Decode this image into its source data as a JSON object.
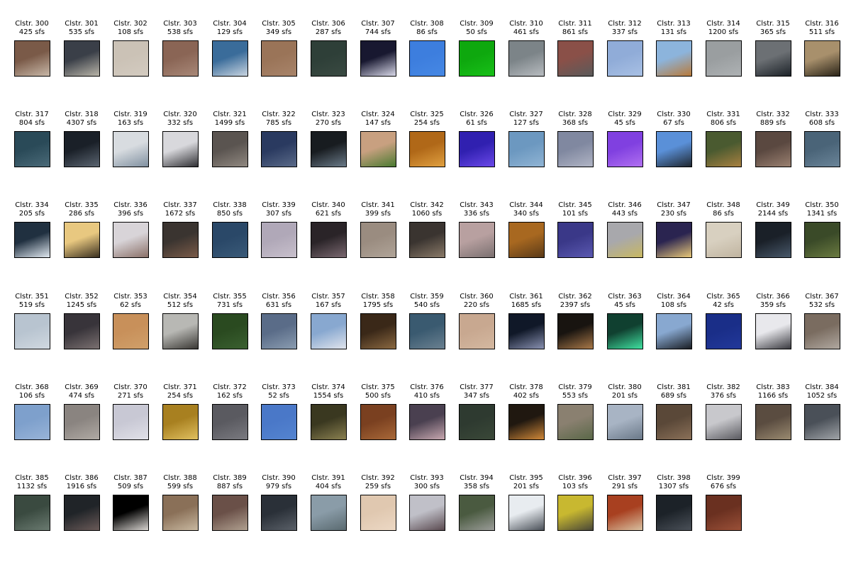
{
  "clusters": [
    {
      "label": "Clstr. 300",
      "count": "425 sfs",
      "img": "brown-roof-building",
      "c1": "#7a5a48",
      "c2": "#c8b8a8"
    },
    {
      "label": "Clstr. 301",
      "count": "535 sfs",
      "img": "city-buildings",
      "c1": "#3a3f48",
      "c2": "#b8b4a8"
    },
    {
      "label": "Clstr. 302",
      "count": "108 sfs",
      "img": "beige-wall",
      "c1": "#cbc2b6",
      "c2": "#d3cbc0"
    },
    {
      "label": "Clstr. 303",
      "count": "538 sfs",
      "img": "brown-roof",
      "c1": "#8a6555",
      "c2": "#a88878"
    },
    {
      "label": "Clstr. 304",
      "count": "129 sfs",
      "img": "mountains-skyline",
      "c1": "#3a6c9a",
      "c2": "#c8d4e0"
    },
    {
      "label": "Clstr. 305",
      "count": "349 sfs",
      "img": "brown-texture",
      "c1": "#9a7458",
      "c2": "#a8846a"
    },
    {
      "label": "Clstr. 306",
      "count": "287 sfs",
      "img": "dark-green-surface",
      "c1": "#2e3f38",
      "c2": "#3a4a42"
    },
    {
      "label": "Clstr. 307",
      "count": "744 sfs",
      "img": "night-lit-windows",
      "c1": "#181830",
      "c2": "#d8d8e8"
    },
    {
      "label": "Clstr. 308",
      "count": "86 sfs",
      "img": "blue-sky",
      "c1": "#3d7ede",
      "c2": "#4688e4"
    },
    {
      "label": "Clstr. 309",
      "count": "50 sfs",
      "img": "green-screen",
      "c1": "#0ea80e",
      "c2": "#18c018"
    },
    {
      "label": "Clstr. 310",
      "count": "461 sfs",
      "img": "grey-rooftop",
      "c1": "#7c8488",
      "c2": "#b8bcc0"
    },
    {
      "label": "Clstr. 311",
      "count": "861 sfs",
      "img": "red-grey-roof",
      "c1": "#8a5048",
      "c2": "#5a5a5a"
    },
    {
      "label": "Clstr. 312",
      "count": "337 sfs",
      "img": "light-blue-sky",
      "c1": "#90acd8",
      "c2": "#a8c0e4"
    },
    {
      "label": "Clstr. 313",
      "count": "131 sfs",
      "img": "autumn-trees-sky",
      "c1": "#8cb4dc",
      "c2": "#b87a3a"
    },
    {
      "label": "Clstr. 314",
      "count": "1200 sfs",
      "img": "grey-pavement",
      "c1": "#9a9ea0",
      "c2": "#aeb2b4"
    },
    {
      "label": "Clstr. 315",
      "count": "365 sfs",
      "img": "grey-wall-dark-base",
      "c1": "#6c7074",
      "c2": "#1c2228"
    },
    {
      "label": "Clstr. 316",
      "count": "511 sfs",
      "img": "tan-building-windows",
      "c1": "#a8906c",
      "c2": "#2a2418"
    },
    {
      "label": "Clstr. 317",
      "count": "804 sfs",
      "img": "water-bridge",
      "c1": "#2a4a58",
      "c2": "#4a6a78"
    },
    {
      "label": "Clstr. 318",
      "count": "4307 sfs",
      "img": "dark-glass-facade",
      "c1": "#1a2028",
      "c2": "#5a6470"
    },
    {
      "label": "Clstr. 319",
      "count": "163 sfs",
      "img": "white-building-windows",
      "c1": "#d8dce0",
      "c2": "#8090a0"
    },
    {
      "label": "Clstr. 320",
      "count": "332 sfs",
      "img": "white-diagonal-roof",
      "c1": "#d8d8dc",
      "c2": "#303034"
    },
    {
      "label": "Clstr. 321",
      "count": "1499 sfs",
      "img": "grey-layered-roof",
      "c1": "#5a5450",
      "c2": "#908880"
    },
    {
      "label": "Clstr. 322",
      "count": "785 sfs",
      "img": "blue-glass-tower",
      "c1": "#2a3a60",
      "c2": "#5a6a88"
    },
    {
      "label": "Clstr. 323",
      "count": "270 sfs",
      "img": "water-dark-top",
      "c1": "#181c20",
      "c2": "#6a7a88"
    },
    {
      "label": "Clstr. 324",
      "count": "147 sfs",
      "img": "tan-field",
      "c1": "#c8a080",
      "c2": "#4a7a30"
    },
    {
      "label": "Clstr. 325",
      "count": "254 sfs",
      "img": "orange-lights",
      "c1": "#b06818",
      "c2": "#e0a040"
    },
    {
      "label": "Clstr. 326",
      "count": "61 sfs",
      "img": "purple-neon",
      "c1": "#3020b0",
      "c2": "#6a48e8"
    },
    {
      "label": "Clstr. 327",
      "count": "127 sfs",
      "img": "pale-blue-glass",
      "c1": "#6c98c0",
      "c2": "#90b4d4"
    },
    {
      "label": "Clstr. 328",
      "count": "368 sfs",
      "img": "grey-tower",
      "c1": "#8088a0",
      "c2": "#b0b4c4"
    },
    {
      "label": "Clstr. 329",
      "count": "45 sfs",
      "img": "violet-gradient",
      "c1": "#8040e0",
      "c2": "#b070f0"
    },
    {
      "label": "Clstr. 330",
      "count": "67 sfs",
      "img": "building-on-sky",
      "c1": "#5a90d8",
      "c2": "#202830"
    },
    {
      "label": "Clstr. 331",
      "count": "806 sfs",
      "img": "autumn-foliage",
      "c1": "#4a5a30",
      "c2": "#a88040"
    },
    {
      "label": "Clstr. 332",
      "count": "889 sfs",
      "img": "brown-diagonal",
      "c1": "#5a4840",
      "c2": "#9a8070"
    },
    {
      "label": "Clstr. 333",
      "count": "608 sfs",
      "img": "steel-blue-water",
      "c1": "#4a6478",
      "c2": "#6a8498"
    },
    {
      "label": "Clstr. 334",
      "count": "205 sfs",
      "img": "white-stripes-diagonal",
      "c1": "#203040",
      "c2": "#e0e8f0"
    },
    {
      "label": "Clstr. 335",
      "count": "286 sfs",
      "img": "yellow-lit-building",
      "c1": "#e8c880",
      "c2": "#3a3020"
    },
    {
      "label": "Clstr. 336",
      "count": "396 sfs",
      "img": "bare-branches",
      "c1": "#d8d4d8",
      "c2": "#8a7068"
    },
    {
      "label": "Clstr. 337",
      "count": "1672 sfs",
      "img": "dark-rooftop-street",
      "c1": "#3a3430",
      "c2": "#7a5a48"
    },
    {
      "label": "Clstr. 338",
      "count": "850 sfs",
      "img": "deep-blue-water",
      "c1": "#2a4868",
      "c2": "#3a5a78"
    },
    {
      "label": "Clstr. 339",
      "count": "307 sfs",
      "img": "hazy-lilac-sky",
      "c1": "#b0a8b8",
      "c2": "#c8c0cc"
    },
    {
      "label": "Clstr. 340",
      "count": "621 sfs",
      "img": "dark-tower-windows",
      "c1": "#2a2428",
      "c2": "#7a6870"
    },
    {
      "label": "Clstr. 341",
      "count": "399 sfs",
      "img": "stone-texture",
      "c1": "#9a8c80",
      "c2": "#b0a498"
    },
    {
      "label": "Clstr. 342",
      "count": "1060 sfs",
      "img": "dark-diagonal-road",
      "c1": "#3a3430",
      "c2": "#8a7a68"
    },
    {
      "label": "Clstr. 343",
      "count": "336 sfs",
      "img": "pink-grey-roof",
      "c1": "#b8a0a0",
      "c2": "#7a7070"
    },
    {
      "label": "Clstr. 344",
      "count": "340 sfs",
      "img": "orange-tree",
      "c1": "#a86820",
      "c2": "#5a3a18"
    },
    {
      "label": "Clstr. 345",
      "count": "101 sfs",
      "img": "indigo-surface",
      "c1": "#3a3888",
      "c2": "#5a58b0"
    },
    {
      "label": "Clstr. 346",
      "count": "443 sfs",
      "img": "grey-road-yellow-line",
      "c1": "#a8a8ac",
      "c2": "#c8b860"
    },
    {
      "label": "Clstr. 347",
      "count": "230 sfs",
      "img": "purple-night-building",
      "c1": "#2a2450",
      "c2": "#e8c878"
    },
    {
      "label": "Clstr. 348",
      "count": "86 sfs",
      "img": "sand-beach",
      "c1": "#d8d0c0",
      "c2": "#c0b4a0"
    },
    {
      "label": "Clstr. 349",
      "count": "2144 sfs",
      "img": "dark-facade",
      "c1": "#1a2028",
      "c2": "#48586a"
    },
    {
      "label": "Clstr. 350",
      "count": "1341 sfs",
      "img": "green-tree",
      "c1": "#3a4a28",
      "c2": "#6a7a40"
    },
    {
      "label": "Clstr. 351",
      "count": "519 sfs",
      "img": "pale-sky",
      "c1": "#b8c4d0",
      "c2": "#d0d8e0"
    },
    {
      "label": "Clstr. 352",
      "count": "1245 sfs",
      "img": "dark-roof-corner",
      "c1": "#38343a",
      "c2": "#7a7070"
    },
    {
      "label": "Clstr. 353",
      "count": "62 sfs",
      "img": "tan-wood",
      "c1": "#c8905a",
      "c2": "#d0a06a"
    },
    {
      "label": "Clstr. 354",
      "count": "512 sfs",
      "img": "parking-structure",
      "c1": "#b8b8b4",
      "c2": "#3a3834"
    },
    {
      "label": "Clstr. 355",
      "count": "731 sfs",
      "img": "green-leaves",
      "c1": "#2a4a20",
      "c2": "#3a6030"
    },
    {
      "label": "Clstr. 356",
      "count": "631 sfs",
      "img": "glass-curtain-wall",
      "c1": "#5a6c88",
      "c2": "#8a9cb0"
    },
    {
      "label": "Clstr. 357",
      "count": "167 sfs",
      "img": "cloudy-sky",
      "c1": "#88a8d0",
      "c2": "#e0e4ec"
    },
    {
      "label": "Clstr. 358",
      "count": "1795 sfs",
      "img": "brown-foliage",
      "c1": "#3a2818",
      "c2": "#8a6840"
    },
    {
      "label": "Clstr. 359",
      "count": "540 sfs",
      "img": "river-shore",
      "c1": "#3a5a70",
      "c2": "#6a8090"
    },
    {
      "label": "Clstr. 360",
      "count": "220 sfs",
      "img": "peach-surface",
      "c1": "#c8a890",
      "c2": "#d4b8a0"
    },
    {
      "label": "Clstr. 361",
      "count": "1685 sfs",
      "img": "night-office-tower",
      "c1": "#101828",
      "c2": "#8890b0"
    },
    {
      "label": "Clstr. 362",
      "count": "2397 sfs",
      "img": "dark-street-lights",
      "c1": "#181410",
      "c2": "#a87848"
    },
    {
      "label": "Clstr. 363",
      "count": "45 sfs",
      "img": "green-led-sign",
      "c1": "#104030",
      "c2": "#40e0a0"
    },
    {
      "label": "Clstr. 364",
      "count": "108 sfs",
      "img": "sky-dark-building",
      "c1": "#88a8d0",
      "c2": "#1a1e24"
    },
    {
      "label": "Clstr. 365",
      "count": "42 sfs",
      "img": "navy-blue",
      "c1": "#1a2e88",
      "c2": "#22389a"
    },
    {
      "label": "Clstr. 366",
      "count": "359 sfs",
      "img": "white-house",
      "c1": "#e8e8ec",
      "c2": "#3a3a40"
    },
    {
      "label": "Clstr. 367",
      "count": "532 sfs",
      "img": "grey-brown-wall",
      "c1": "#7a6c60",
      "c2": "#b0a8a0"
    },
    {
      "label": "Clstr. 368",
      "count": "106 sfs",
      "img": "blue-sky-haze",
      "c1": "#7ea0cc",
      "c2": "#98b4d8"
    },
    {
      "label": "Clstr. 369",
      "count": "474 sfs",
      "img": "grey-diagonal-road",
      "c1": "#8a8480",
      "c2": "#b0aaa4"
    },
    {
      "label": "Clstr. 370",
      "count": "271 sfs",
      "img": "overcast-sky",
      "c1": "#c8c8d4",
      "c2": "#e0e0e8"
    },
    {
      "label": "Clstr. 371",
      "count": "254 sfs",
      "img": "golden-lights",
      "c1": "#a88020",
      "c2": "#e0c060"
    },
    {
      "label": "Clstr. 372",
      "count": "162 sfs",
      "img": "grey-panel",
      "c1": "#5a5a60",
      "c2": "#7a7a80"
    },
    {
      "label": "Clstr. 373",
      "count": "52 sfs",
      "img": "cobalt-blue",
      "c1": "#4a78c8",
      "c2": "#5484d0"
    },
    {
      "label": "Clstr. 374",
      "count": "1554 sfs",
      "img": "olive-rooftop",
      "c1": "#3a3820",
      "c2": "#8a8050"
    },
    {
      "label": "Clstr. 375",
      "count": "500 sfs",
      "img": "rust-foliage",
      "c1": "#7a4020",
      "c2": "#a86838"
    },
    {
      "label": "Clstr. 376",
      "count": "410 sfs",
      "img": "lit-apartment",
      "c1": "#4a4050",
      "c2": "#c8a8b0"
    },
    {
      "label": "Clstr. 377",
      "count": "347 sfs",
      "img": "dark-olive",
      "c1": "#2e3a30",
      "c2": "#3a4838"
    },
    {
      "label": "Clstr. 378",
      "count": "402 sfs",
      "img": "night-street-orange",
      "c1": "#201810",
      "c2": "#d08838"
    },
    {
      "label": "Clstr. 379",
      "count": "553 sfs",
      "img": "aerial-plaza",
      "c1": "#8a8070",
      "c2": "#5a6848"
    },
    {
      "label": "Clstr. 380",
      "count": "201 sfs",
      "img": "skyline-haze",
      "c1": "#a8b4c4",
      "c2": "#6a7888"
    },
    {
      "label": "Clstr. 381",
      "count": "689 sfs",
      "img": "brown-street-grid",
      "c1": "#5a4838",
      "c2": "#8a7058"
    },
    {
      "label": "Clstr. 382",
      "count": "376 sfs",
      "img": "street-scene",
      "c1": "#c8c8cc",
      "c2": "#5a5a60"
    },
    {
      "label": "Clstr. 383",
      "count": "1166 sfs",
      "img": "old-brick-building",
      "c1": "#5a4c40",
      "c2": "#9a8a70"
    },
    {
      "label": "Clstr. 384",
      "count": "1052 sfs",
      "img": "grey-urban-block",
      "c1": "#4a5058",
      "c2": "#a0a4a8"
    },
    {
      "label": "Clstr. 385",
      "count": "1132 sfs",
      "img": "forest-hills",
      "c1": "#3a4a40",
      "c2": "#6a7a70"
    },
    {
      "label": "Clstr. 386",
      "count": "1916 sfs",
      "img": "tall-dark-tower",
      "c1": "#202428",
      "c2": "#6a5a58"
    },
    {
      "label": "Clstr. 387",
      "count": "509 sfs",
      "img": "black-screen",
      "c1": "#000000",
      "c2": "#d8d4d0"
    },
    {
      "label": "Clstr. 388",
      "count": "599 sfs",
      "img": "stadium-crowd",
      "c1": "#8a7058",
      "c2": "#c8b8a0"
    },
    {
      "label": "Clstr. 389",
      "count": "887 sfs",
      "img": "colorful-facade",
      "c1": "#6a5048",
      "c2": "#b0a090"
    },
    {
      "label": "Clstr. 390",
      "count": "979 sfs",
      "img": "dark-city-block",
      "c1": "#2a3038",
      "c2": "#5a6068"
    },
    {
      "label": "Clstr. 391",
      "count": "404 sfs",
      "img": "grey-tower-sky",
      "c1": "#8a9ca8",
      "c2": "#5a6a70"
    },
    {
      "label": "Clstr. 392",
      "count": "259 sfs",
      "img": "cream-surface",
      "c1": "#e0c8b0",
      "c2": "#ecd8c4"
    },
    {
      "label": "Clstr. 393",
      "count": "300 sfs",
      "img": "white-boat",
      "c1": "#c0c0c8",
      "c2": "#5a4a50"
    },
    {
      "label": "Clstr. 394",
      "count": "358 sfs",
      "img": "green-rail",
      "c1": "#4a5a40",
      "c2": "#9a9c98"
    },
    {
      "label": "Clstr. 395",
      "count": "201 sfs",
      "img": "white-curve",
      "c1": "#e8ecf0",
      "c2": "#4a5058"
    },
    {
      "label": "Clstr. 396",
      "count": "103 sfs",
      "img": "yellow-steel",
      "c1": "#c8b830",
      "c2": "#4a4838"
    },
    {
      "label": "Clstr. 397",
      "count": "291 sfs",
      "img": "red-crane",
      "c1": "#a84020",
      "c2": "#d8c0a0"
    },
    {
      "label": "Clstr. 398",
      "count": "1307 sfs",
      "img": "dark-parking-lot",
      "c1": "#1c2228",
      "c2": "#4a5058"
    },
    {
      "label": "Clstr. 399",
      "count": "676 sfs",
      "img": "red-autumn-tree",
      "c1": "#6a3020",
      "c2": "#9a5038"
    }
  ]
}
